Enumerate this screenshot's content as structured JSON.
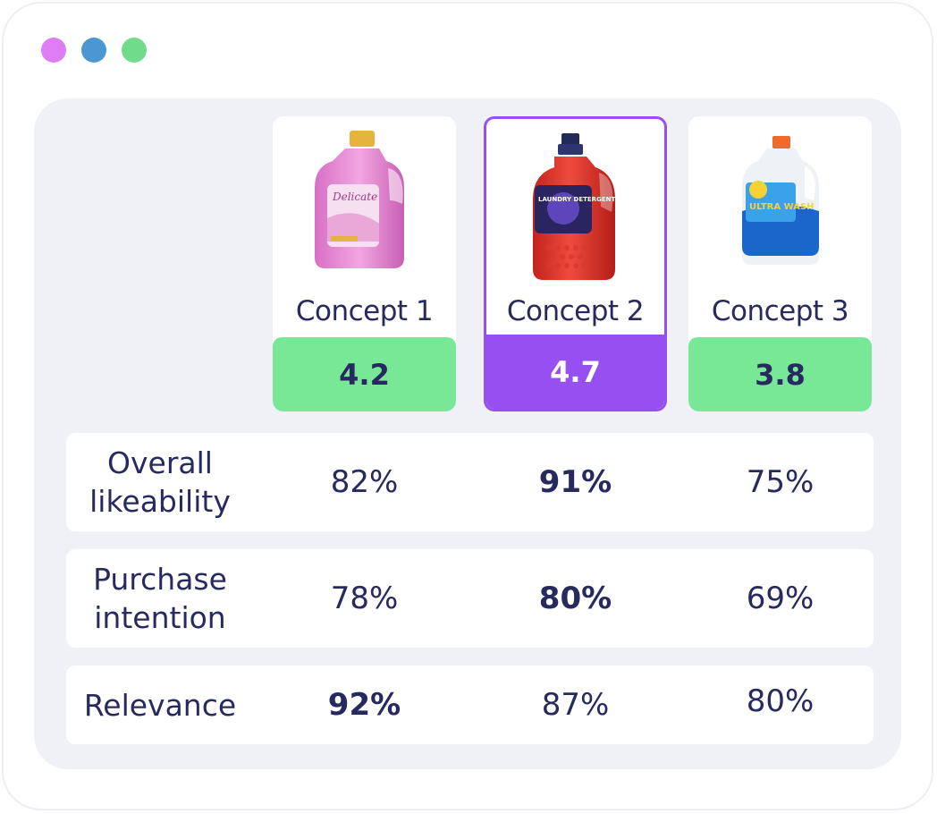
{
  "window": {
    "dots": [
      {
        "name": "dot-purple",
        "color": "#de7df5"
      },
      {
        "name": "dot-blue",
        "color": "#4a97d1"
      },
      {
        "name": "dot-green",
        "color": "#6fdc8c"
      }
    ]
  },
  "colors": {
    "accent": "#9650f2",
    "score_green": "#78e796",
    "text": "#262a5e"
  },
  "concepts": [
    {
      "name": "Concept 1",
      "score": "4.2",
      "product_icon": "pink-detergent-bottle-icon",
      "product_label": "Delicate"
    },
    {
      "name": "Concept 2",
      "score": "4.7",
      "product_icon": "red-detergent-bottle-icon",
      "product_label": "LAUNDRY DETERGENT",
      "highlighted": true
    },
    {
      "name": "Concept 3",
      "score": "3.8",
      "product_icon": "white-detergent-bottle-icon",
      "product_label": "ULTRA WASH"
    }
  ],
  "metrics": [
    {
      "label": "Overall likeability",
      "values": [
        "82%",
        "91%",
        "75%"
      ],
      "best_index": 1
    },
    {
      "label": "Purchase intention",
      "values": [
        "78%",
        "80%",
        "69%"
      ],
      "best_index": 1
    },
    {
      "label": "Relevance",
      "values": [
        "92%",
        "87%",
        "80%"
      ],
      "best_index": 0
    }
  ]
}
